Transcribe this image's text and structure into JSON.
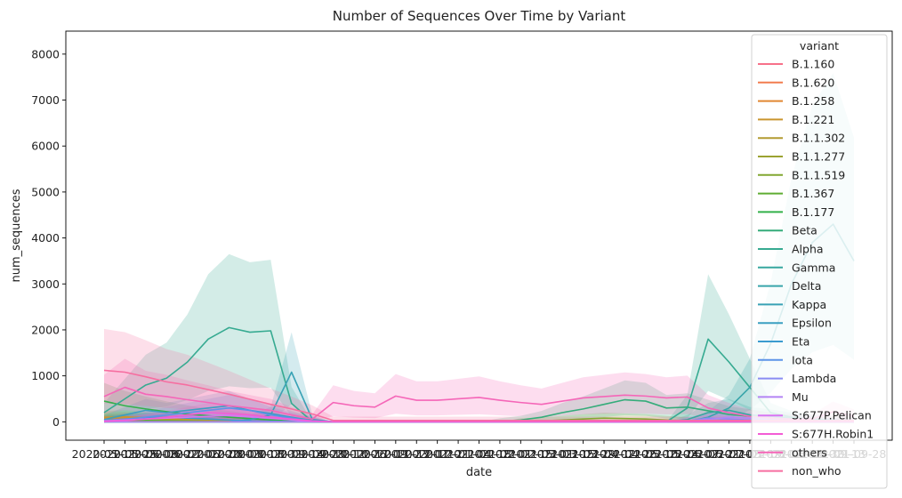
{
  "chart_data": {
    "type": "line",
    "title": "Number of Sequences Over Time by Variant",
    "xlabel": "date",
    "ylabel": "num_sequences",
    "ylim": [
      -400,
      8500
    ],
    "yticks": [
      0,
      1000,
      2000,
      3000,
      4000,
      5000,
      6000,
      7000,
      8000
    ],
    "x": [
      "2020-05-11",
      "2020-05-25",
      "2020-06-08",
      "2020-06-22",
      "2020-07-06",
      "2020-07-20",
      "2020-08-03",
      "2020-08-17",
      "2020-08-31",
      "2020-09-14",
      "2020-09-28",
      "2020-10-12",
      "2020-10-26",
      "2020-11-09",
      "2020-11-23",
      "2020-12-07",
      "2020-12-21",
      "2021-01-04",
      "2021-01-18",
      "2021-02-01",
      "2021-02-15",
      "2021-03-01",
      "2021-03-15",
      "2021-03-29",
      "2021-04-12",
      "2021-04-26",
      "2021-05-10",
      "2021-05-24",
      "2021-06-07",
      "2021-06-21",
      "2021-07-05",
      "2021-07-19",
      "2021-08-02",
      "2021-08-16",
      "2021-08-30",
      "2021-09-13",
      "2021-09-28"
    ],
    "xtick_labels": [
      "2020-05-11",
      "2020-05-25",
      "2020-06-08",
      "2020-06-22",
      "2020-07-06",
      "2020-07-20",
      "2020-08-03",
      "2020-08-17",
      "2020-08-31",
      "2020-09-14",
      "2020-09-28",
      "2020-10-12",
      "2020-10-26",
      "2020-11-09",
      "2020-11-23",
      "2020-12-07",
      "2020-12-21",
      "2021-01-04",
      "2021-01-18",
      "2021-02-01",
      "2021-02-15",
      "2021-03-01",
      "2021-03-15",
      "2021-03-29",
      "2021-04-12",
      "2021-04-26",
      "2021-05-10",
      "2021-05-24",
      "2021-06-07",
      "2021-06-21",
      "2021-07-05",
      "2021-07-19",
      "2021-08-02",
      "2021-08-16",
      "2021-08-30",
      "2021-09-13",
      "2021-09-28"
    ],
    "grid": false,
    "legend": {
      "title": "variant",
      "placement": "top-right"
    },
    "series": [
      {
        "name": "B.1.160",
        "color": "#f77189",
        "values": [
          60,
          70,
          80,
          60,
          50,
          40,
          30,
          20,
          10,
          5,
          0,
          0,
          0,
          0,
          0,
          0,
          0,
          0,
          0,
          0,
          0,
          0,
          0,
          0,
          0,
          0,
          0,
          0,
          0,
          0,
          0,
          0,
          0,
          0,
          0,
          0,
          0
        ]
      },
      {
        "name": "B.1.620",
        "color": "#f27d4f",
        "values": [
          20,
          25,
          30,
          40,
          50,
          40,
          30,
          20,
          10,
          5,
          0,
          0,
          0,
          0,
          0,
          0,
          0,
          0,
          0,
          0,
          0,
          0,
          0,
          0,
          0,
          0,
          0,
          0,
          0,
          0,
          0,
          0,
          0,
          0,
          0,
          0,
          0
        ]
      },
      {
        "name": "B.1.258",
        "color": "#e18832",
        "values": [
          80,
          90,
          70,
          60,
          40,
          30,
          20,
          10,
          5,
          0,
          0,
          0,
          0,
          0,
          0,
          0,
          0,
          0,
          0,
          0,
          0,
          0,
          0,
          0,
          0,
          0,
          0,
          0,
          0,
          0,
          0,
          0,
          0,
          0,
          0,
          0,
          0
        ]
      },
      {
        "name": "B.1.221",
        "color": "#c9952f",
        "values": [
          100,
          110,
          90,
          70,
          50,
          40,
          30,
          20,
          10,
          5,
          0,
          0,
          0,
          0,
          0,
          0,
          0,
          0,
          0,
          0,
          0,
          0,
          0,
          0,
          0,
          0,
          0,
          0,
          0,
          0,
          0,
          0,
          0,
          0,
          0,
          0,
          0
        ]
      },
      {
        "name": "B.1.1.302",
        "color": "#b39b31",
        "values": [
          40,
          50,
          40,
          30,
          20,
          10,
          5,
          0,
          0,
          0,
          0,
          0,
          0,
          0,
          0,
          0,
          0,
          0,
          0,
          0,
          0,
          0,
          0,
          0,
          0,
          0,
          0,
          0,
          0,
          0,
          0,
          0,
          0,
          0,
          0,
          0,
          0
        ]
      },
      {
        "name": "B.1.1.277",
        "color": "#9ba231",
        "values": [
          50,
          60,
          50,
          40,
          30,
          20,
          10,
          5,
          0,
          0,
          0,
          0,
          0,
          0,
          0,
          0,
          0,
          0,
          0,
          0,
          0,
          0,
          0,
          0,
          0,
          0,
          0,
          0,
          0,
          0,
          0,
          0,
          0,
          0,
          0,
          0,
          0
        ]
      },
      {
        "name": "B.1.1.519",
        "color": "#82a731",
        "values": [
          0,
          0,
          0,
          0,
          0,
          0,
          0,
          0,
          0,
          0,
          0,
          0,
          0,
          0,
          0,
          0,
          0,
          0,
          0,
          0,
          10,
          20,
          40,
          60,
          80,
          70,
          60,
          40,
          20,
          10,
          5,
          0,
          0,
          0,
          0,
          0,
          0
        ]
      },
      {
        "name": "B.1.367",
        "color": "#5fad33",
        "values": [
          30,
          40,
          30,
          20,
          10,
          5,
          0,
          0,
          0,
          0,
          0,
          0,
          0,
          0,
          0,
          0,
          0,
          0,
          0,
          0,
          0,
          0,
          0,
          0,
          0,
          0,
          0,
          0,
          0,
          0,
          0,
          0,
          0,
          0,
          0,
          0,
          0
        ]
      },
      {
        "name": "B.1.177",
        "color": "#33b04a",
        "values": [
          450,
          350,
          280,
          220,
          170,
          130,
          100,
          70,
          40,
          20,
          10,
          0,
          0,
          0,
          0,
          0,
          0,
          0,
          0,
          0,
          0,
          0,
          0,
          0,
          0,
          0,
          0,
          0,
          0,
          0,
          0,
          0,
          0,
          0,
          0,
          0,
          0
        ]
      },
      {
        "name": "Beta",
        "color": "#35ac7a",
        "values": [
          0,
          0,
          0,
          0,
          0,
          0,
          0,
          0,
          0,
          0,
          0,
          0,
          0,
          0,
          0,
          0,
          0,
          0,
          0,
          10,
          40,
          100,
          200,
          280,
          380,
          480,
          450,
          300,
          320,
          240,
          160,
          120,
          80,
          50,
          30,
          20,
          10
        ]
      },
      {
        "name": "Alpha",
        "color": "#36aa91",
        "values": [
          200,
          500,
          800,
          950,
          1300,
          1800,
          2050,
          1950,
          1980,
          400,
          0,
          0,
          0,
          0,
          0,
          0,
          0,
          0,
          0,
          0,
          0,
          0,
          0,
          0,
          0,
          0,
          0,
          0,
          300,
          1800,
          1300,
          750,
          200,
          100,
          50,
          30,
          20
        ]
      },
      {
        "name": "Gamma",
        "color": "#37a79f",
        "values": [
          0,
          0,
          0,
          0,
          0,
          0,
          0,
          0,
          0,
          0,
          0,
          0,
          0,
          0,
          0,
          0,
          0,
          0,
          0,
          0,
          0,
          0,
          0,
          0,
          0,
          0,
          0,
          0,
          50,
          200,
          250,
          150,
          120,
          80,
          60,
          40,
          20
        ]
      },
      {
        "name": "Delta",
        "color": "#38a5aa",
        "values": [
          0,
          0,
          0,
          0,
          0,
          0,
          0,
          0,
          0,
          0,
          0,
          0,
          0,
          0,
          0,
          0,
          0,
          0,
          0,
          0,
          0,
          0,
          0,
          0,
          0,
          0,
          0,
          0,
          0,
          100,
          300,
          750,
          1700,
          3000,
          3900,
          4300,
          3500
        ]
      },
      {
        "name": "Kappa",
        "color": "#39a2b5",
        "values": [
          0,
          0,
          0,
          0,
          0,
          0,
          0,
          50,
          150,
          1080,
          50,
          0,
          0,
          0,
          0,
          0,
          0,
          0,
          0,
          0,
          0,
          0,
          0,
          0,
          0,
          0,
          0,
          0,
          0,
          0,
          0,
          0,
          0,
          0,
          0,
          0,
          0
        ]
      },
      {
        "name": "Epsilon",
        "color": "#3a9fc1",
        "values": [
          50,
          150,
          250,
          200,
          250,
          300,
          350,
          250,
          180,
          100,
          30,
          0,
          0,
          0,
          0,
          0,
          0,
          0,
          0,
          0,
          0,
          0,
          0,
          0,
          0,
          0,
          0,
          0,
          0,
          0,
          0,
          0,
          0,
          0,
          0,
          0,
          0
        ]
      },
      {
        "name": "Eta",
        "color": "#3b9bcf",
        "values": [
          20,
          50,
          80,
          100,
          80,
          60,
          40,
          20,
          10,
          5,
          0,
          0,
          0,
          0,
          0,
          0,
          0,
          0,
          0,
          0,
          0,
          0,
          0,
          0,
          0,
          0,
          0,
          0,
          0,
          0,
          0,
          0,
          0,
          0,
          0,
          0,
          0
        ]
      },
      {
        "name": "Iota",
        "color": "#5c93e8",
        "values": [
          30,
          60,
          100,
          150,
          200,
          250,
          300,
          250,
          150,
          80,
          20,
          0,
          0,
          0,
          0,
          0,
          0,
          0,
          0,
          0,
          0,
          0,
          0,
          0,
          0,
          0,
          0,
          0,
          0,
          0,
          0,
          0,
          0,
          0,
          0,
          0,
          0
        ]
      },
      {
        "name": "Lambda",
        "color": "#8a8cf3",
        "values": [
          0,
          0,
          0,
          0,
          0,
          0,
          0,
          0,
          0,
          0,
          0,
          0,
          0,
          0,
          0,
          0,
          0,
          0,
          0,
          0,
          0,
          0,
          0,
          0,
          0,
          0,
          0,
          0,
          20,
          80,
          60,
          40,
          30,
          20,
          10,
          5,
          0
        ]
      },
      {
        "name": "Mu",
        "color": "#b384f4",
        "values": [
          0,
          0,
          0,
          0,
          0,
          0,
          0,
          0,
          0,
          0,
          0,
          0,
          0,
          0,
          0,
          0,
          0,
          0,
          0,
          0,
          0,
          0,
          0,
          0,
          0,
          0,
          0,
          0,
          20,
          50,
          100,
          80,
          60,
          40,
          20,
          10,
          5
        ]
      },
      {
        "name": "S:677P.Pelican",
        "color": "#d874f3",
        "values": [
          20,
          40,
          60,
          80,
          100,
          120,
          140,
          110,
          80,
          40,
          10,
          0,
          0,
          0,
          0,
          0,
          0,
          0,
          0,
          0,
          0,
          0,
          0,
          0,
          0,
          0,
          0,
          0,
          0,
          0,
          0,
          0,
          0,
          0,
          0,
          0,
          0
        ]
      },
      {
        "name": "S:677H.Robin1",
        "color": "#f35cd5",
        "values": [
          10,
          30,
          60,
          100,
          150,
          200,
          180,
          150,
          100,
          60,
          20,
          0,
          0,
          0,
          0,
          0,
          0,
          0,
          0,
          0,
          0,
          0,
          0,
          0,
          0,
          0,
          0,
          0,
          0,
          0,
          0,
          0,
          0,
          0,
          0,
          0,
          0
        ]
      },
      {
        "name": "others",
        "color": "#f566b8",
        "values": [
          550,
          750,
          600,
          550,
          480,
          420,
          350,
          300,
          250,
          150,
          60,
          420,
          350,
          320,
          560,
          470,
          470,
          500,
          530,
          470,
          420,
          380,
          450,
          520,
          550,
          580,
          560,
          520,
          540,
          300,
          200,
          120,
          80,
          60,
          60,
          220,
          120
        ]
      },
      {
        "name": "non_who",
        "color": "#f66ea0",
        "values": [
          1120,
          1080,
          980,
          870,
          800,
          700,
          600,
          490,
          380,
          280,
          170,
          30,
          30,
          30,
          30,
          30,
          30,
          30,
          30,
          30,
          30,
          30,
          30,
          30,
          30,
          30,
          30,
          30,
          30,
          30,
          30,
          30,
          30,
          30,
          30,
          30,
          30
        ]
      }
    ]
  }
}
